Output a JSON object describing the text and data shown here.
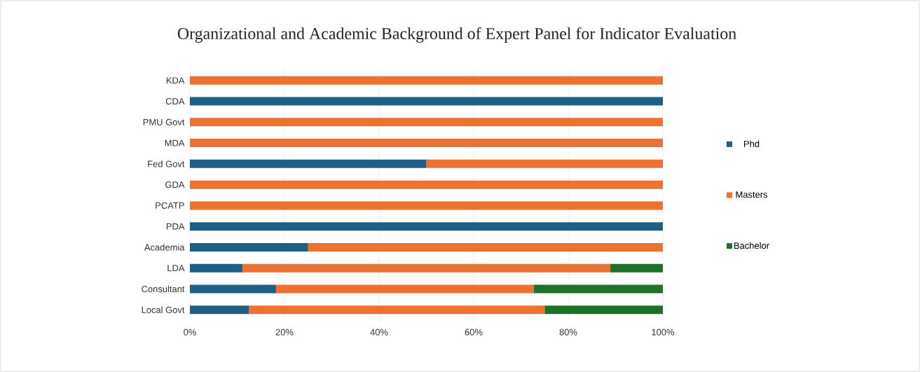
{
  "chart_data": {
    "type": "bar",
    "orientation": "horizontal",
    "stacked": true,
    "title": "Organizational and Academic Background of Expert Panel for Indicator Evaluation",
    "categories": [
      "KDA",
      "CDA",
      "PMU Govt",
      "MDA",
      "Fed Govt",
      "GDA",
      "PCATP",
      "PDA",
      "Academia",
      "LDA",
      "Consultant",
      "Local Govt"
    ],
    "series": [
      {
        "name": "Phd",
        "color": "#1f5f86",
        "values": [
          0,
          100,
          0,
          0,
          50,
          0,
          0,
          100,
          25,
          11.1,
          18.2,
          12.5
        ]
      },
      {
        "name": "Masters",
        "color": "#ef7130",
        "values": [
          100,
          0,
          100,
          100,
          50,
          100,
          100,
          0,
          75,
          77.8,
          54.5,
          62.5
        ]
      },
      {
        "name": "Bachelor",
        "color": "#1e7228",
        "values": [
          0,
          0,
          0,
          0,
          0,
          0,
          0,
          0,
          0,
          11.1,
          27.3,
          25
        ]
      }
    ],
    "xlim": [
      0,
      100
    ],
    "xticks": [
      {
        "value": 0,
        "label": "0%"
      },
      {
        "value": 20,
        "label": "20%"
      },
      {
        "value": 40,
        "label": "40%"
      },
      {
        "value": 60,
        "label": "60%"
      },
      {
        "value": 80,
        "label": "80%"
      },
      {
        "value": 100,
        "label": "100%"
      }
    ],
    "grid": "x",
    "legend": "right"
  }
}
